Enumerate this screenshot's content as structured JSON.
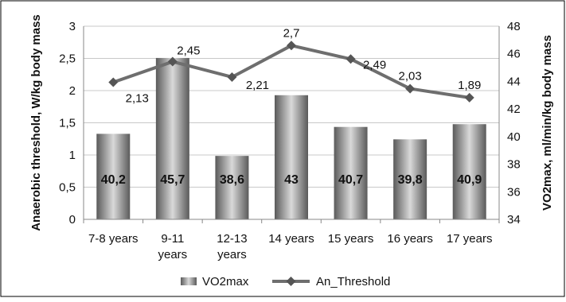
{
  "chart_data": {
    "type": "bar+line",
    "categories": [
      [
        "7-8 years"
      ],
      [
        "9-11",
        "years"
      ],
      [
        "12-13",
        "years"
      ],
      [
        "14 years"
      ],
      [
        "15 years"
      ],
      [
        "16 years"
      ],
      [
        "17 years"
      ]
    ],
    "series": [
      {
        "name": "VO2max",
        "type": "bar",
        "axis": "right",
        "values": [
          40.2,
          45.7,
          38.6,
          43,
          40.7,
          39.8,
          40.9
        ],
        "labels": [
          "40,2",
          "45,7",
          "38,6",
          "43",
          "40,7",
          "39,8",
          "40,9"
        ]
      },
      {
        "name": "An_Threshold",
        "type": "line",
        "axis": "left",
        "values": [
          2.13,
          2.45,
          2.21,
          2.7,
          2.49,
          2.03,
          1.89
        ],
        "labels": [
          "2,13",
          "2,45",
          "2,21",
          "2,7",
          "2,49",
          "2,03",
          "1,89"
        ]
      }
    ],
    "y_left": {
      "label": "Anaerobic threshold, W/kg body mass",
      "range": [
        0,
        3
      ],
      "ticks": [
        "0",
        "0,5",
        "1",
        "1,5",
        "2",
        "2,5",
        "3"
      ]
    },
    "y_right": {
      "label": "VO2max, ml/min/kg body mass",
      "range": [
        34,
        48
      ],
      "ticks": [
        "34",
        "36",
        "38",
        "40",
        "42",
        "44",
        "46",
        "48"
      ]
    },
    "grid": true,
    "legend": "bottom",
    "colors": {
      "bar": "#7a7a7a",
      "line": "#6e6e6e",
      "grid": "#c8c8c8"
    }
  }
}
